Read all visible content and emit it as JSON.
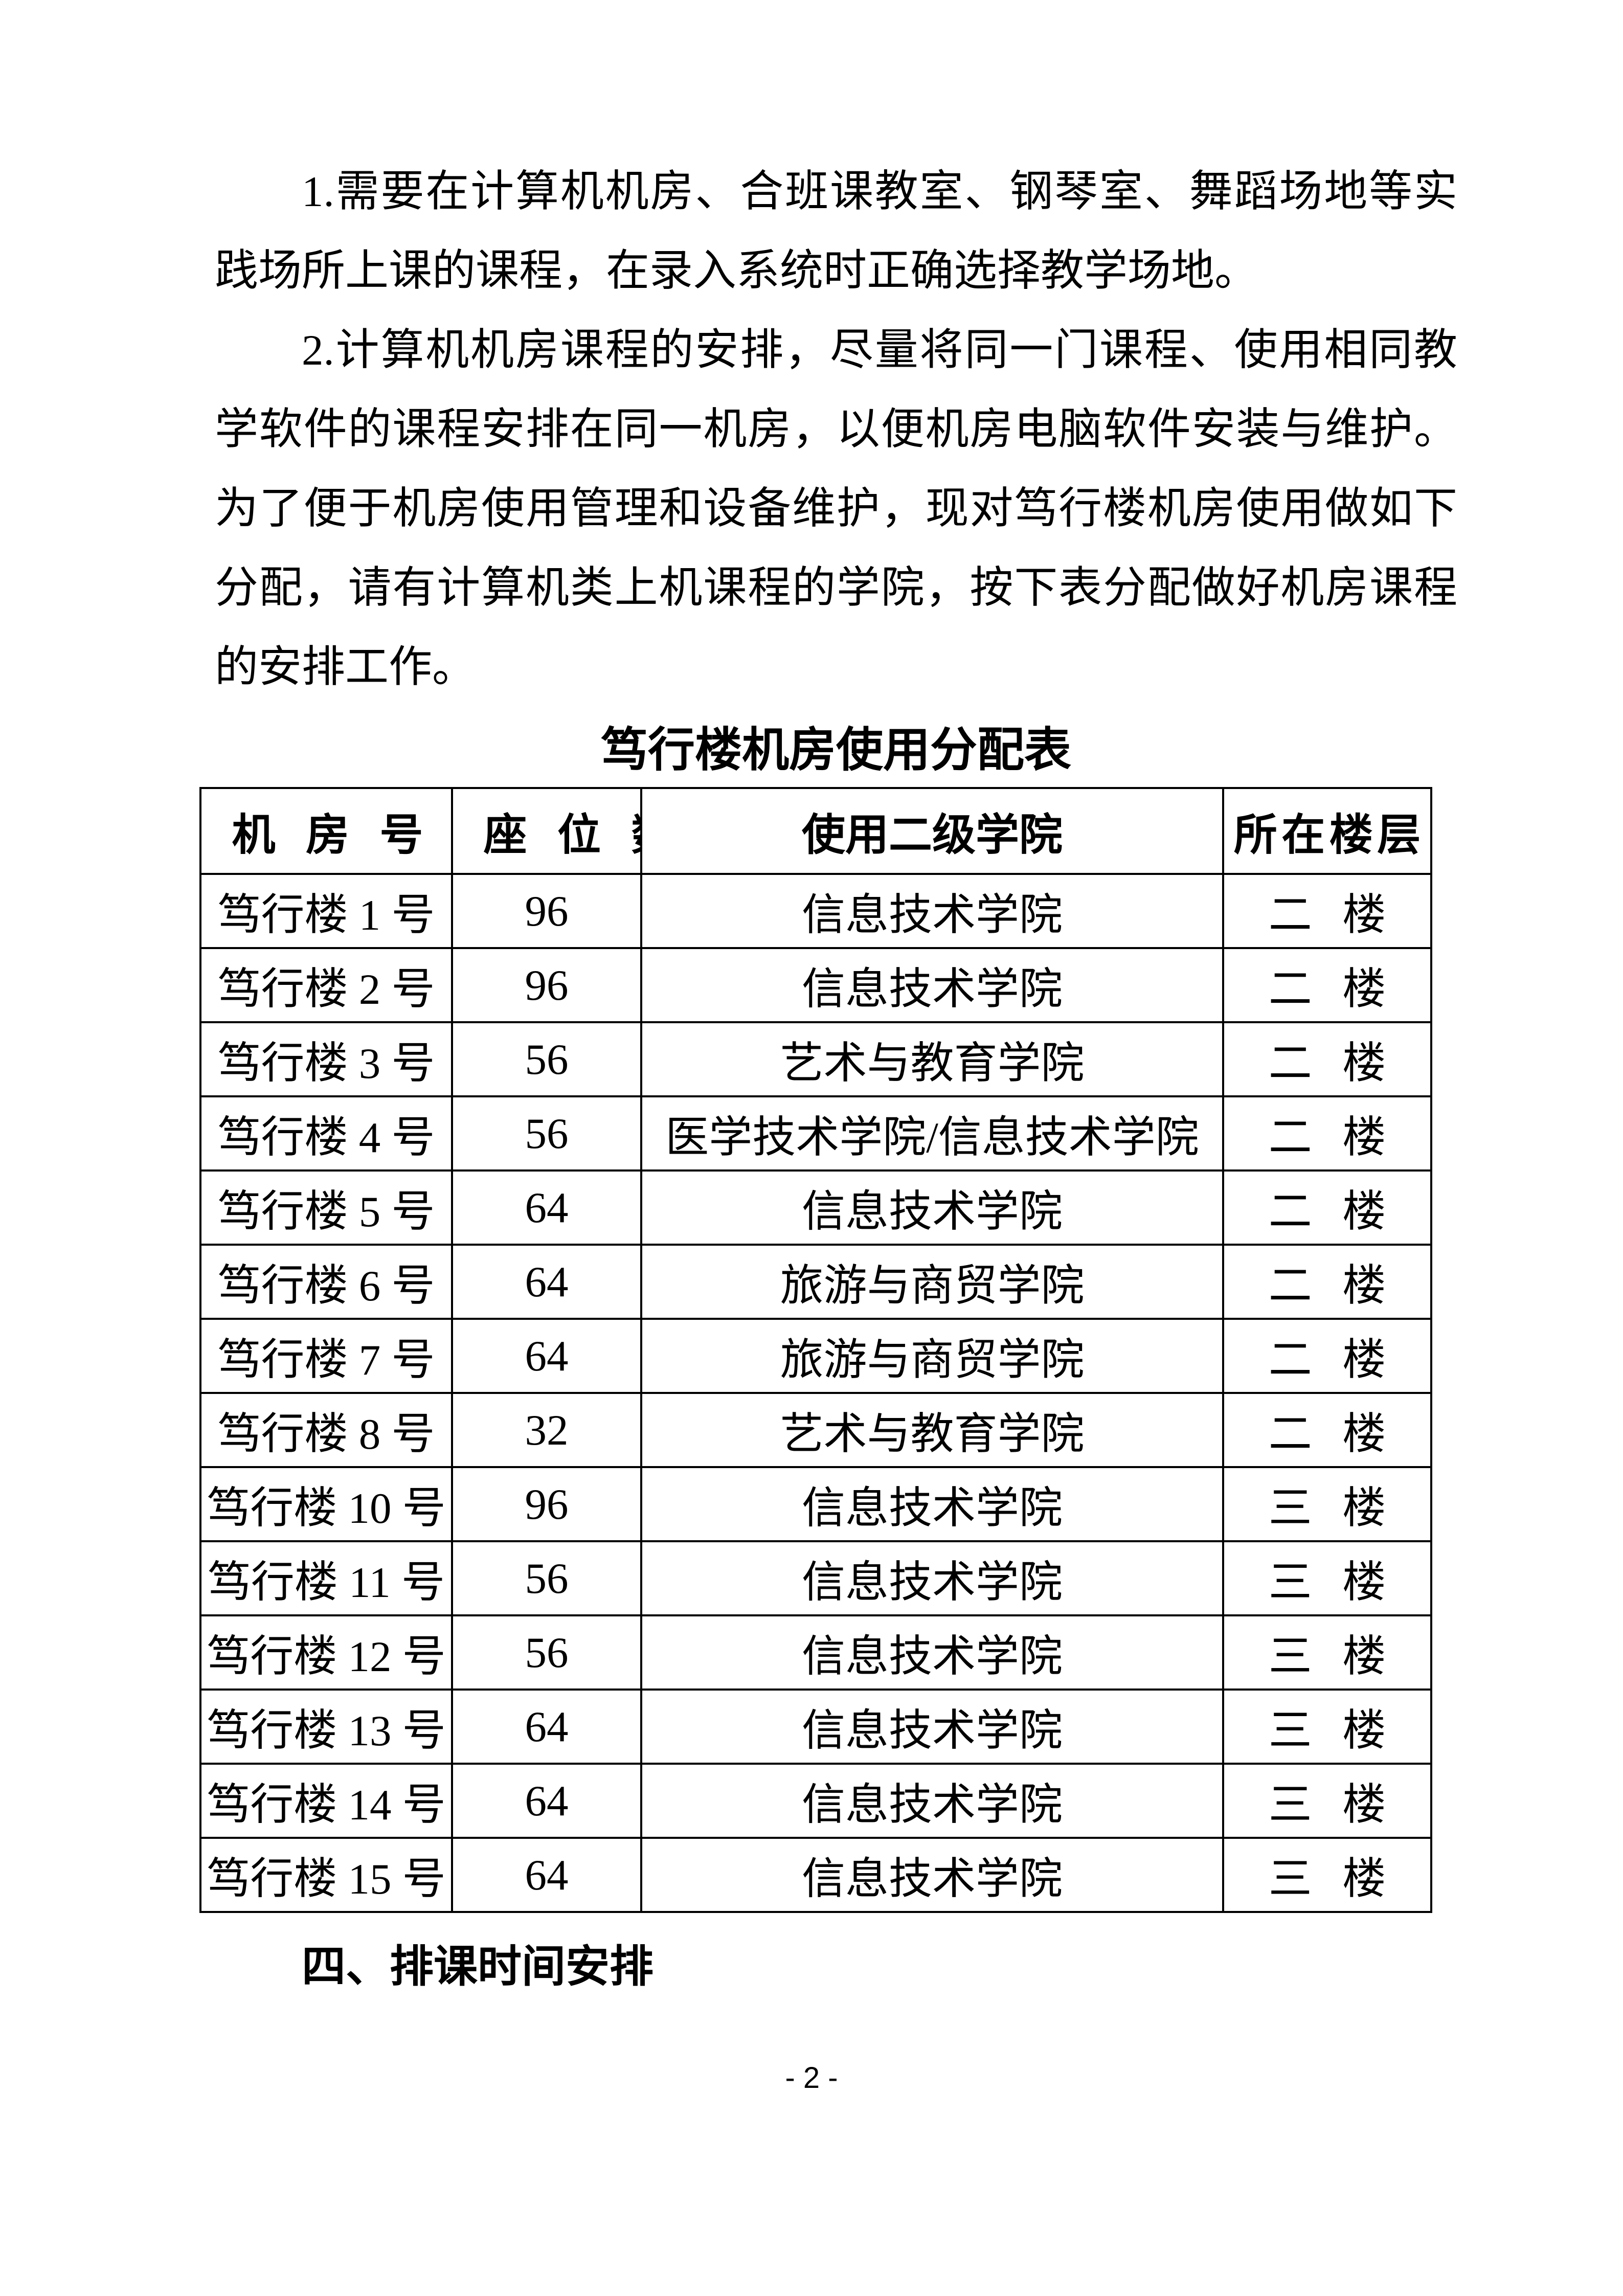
{
  "document": {
    "paragraphs": [
      {
        "text": "1.需要在计算机机房、合班课教室、钢琴室、舞蹈场地等实践场所上课的课程，在录入系统时正确选择教学场地。"
      },
      {
        "text": "2.计算机机房课程的安排，尽量将同一门课程、使用相同教学软件的课程安排在同一机房，以便机房电脑软件安装与维护。为了便于机房使用管理和设备维护，现对笃行楼机房使用做如下分配，请有计算机类上机课程的学院，按下表分配做好机房课程的安排工作。"
      }
    ],
    "table": {
      "title": "笃行楼机房使用分配表",
      "columns": [
        "机房号",
        "座位数",
        "使用二级学院",
        "所在楼层"
      ],
      "rows": [
        [
          "笃行楼 1 号",
          "96",
          "信息技术学院",
          "二楼"
        ],
        [
          "笃行楼 2 号",
          "96",
          "信息技术学院",
          "二楼"
        ],
        [
          "笃行楼 3 号",
          "56",
          "艺术与教育学院",
          "二楼"
        ],
        [
          "笃行楼 4 号",
          "56",
          "医学技术学院/信息技术学院",
          "二楼"
        ],
        [
          "笃行楼 5 号",
          "64",
          "信息技术学院",
          "二楼"
        ],
        [
          "笃行楼 6 号",
          "64",
          "旅游与商贸学院",
          "二楼"
        ],
        [
          "笃行楼 7 号",
          "64",
          "旅游与商贸学院",
          "二楼"
        ],
        [
          "笃行楼 8 号",
          "32",
          "艺术与教育学院",
          "二楼"
        ],
        [
          "笃行楼 10 号",
          "96",
          "信息技术学院",
          "三楼"
        ],
        [
          "笃行楼 11 号",
          "56",
          "信息技术学院",
          "三楼"
        ],
        [
          "笃行楼 12 号",
          "56",
          "信息技术学院",
          "三楼"
        ],
        [
          "笃行楼 13 号",
          "64",
          "信息技术学院",
          "三楼"
        ],
        [
          "笃行楼 14 号",
          "64",
          "信息技术学院",
          "三楼"
        ],
        [
          "笃行楼 15 号",
          "64",
          "信息技术学院",
          "三楼"
        ]
      ]
    },
    "section_heading": "四、排课时间安排",
    "footer": {
      "page_number": "- 2 -"
    }
  }
}
